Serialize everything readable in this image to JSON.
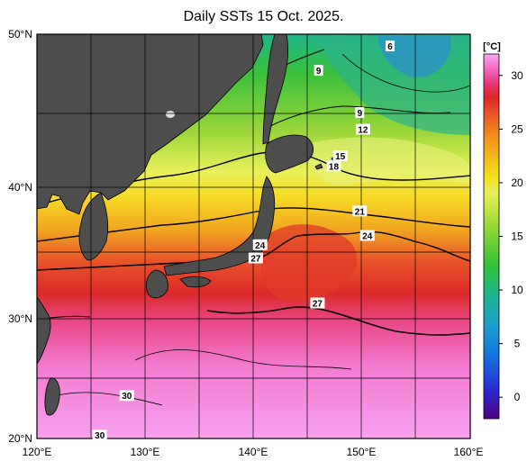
{
  "title": "Daily SSTs 15 Oct. 2025.",
  "map": {
    "lat_range": [
      20,
      50
    ],
    "lon_range": [
      120,
      160
    ],
    "lat_ticks": [
      "20°N",
      "30°N",
      "40°N",
      "50°N"
    ],
    "lon_ticks": [
      "120°E",
      "130°E",
      "140°E",
      "150°E",
      "160°E"
    ],
    "land_color": "#4d4d4d",
    "grid": true
  },
  "colorbar": {
    "unit_label": "[°C]",
    "ticks": [
      "0",
      "5",
      "10",
      "15",
      "20",
      "25",
      "30"
    ],
    "range": [
      -2,
      32
    ],
    "colors": [
      "#4d007f",
      "#2a2ad6",
      "#1478e0",
      "#1ca0c8",
      "#1fb48a",
      "#36c13a",
      "#7ad238",
      "#b4e33c",
      "#e7ef5a",
      "#f2e21c",
      "#f2b81a",
      "#f08a1e",
      "#e8502a",
      "#dc2828",
      "#e8357a",
      "#f36ac0",
      "#f7a8f0"
    ]
  },
  "contour_labels": [
    {
      "text": "6",
      "lat": 49.3,
      "lon": 152.6
    },
    {
      "text": "9",
      "lat": 47.8,
      "lon": 146.0
    },
    {
      "text": "9",
      "lat": 45.1,
      "lon": 149.8
    },
    {
      "text": "12",
      "lat": 44.0,
      "lon": 150.1
    },
    {
      "text": "15",
      "lat": 42.2,
      "lon": 148.0
    },
    {
      "text": "18",
      "lat": 41.5,
      "lon": 147.4
    },
    {
      "text": "21",
      "lat": 38.3,
      "lon": 149.8
    },
    {
      "text": "24",
      "lat": 36.5,
      "lon": 150.5
    },
    {
      "text": "24",
      "lat": 35.8,
      "lon": 140.6
    },
    {
      "text": "27",
      "lat": 34.8,
      "lon": 140.2
    },
    {
      "text": "27",
      "lat": 31.3,
      "lon": 145.9
    },
    {
      "text": "30",
      "lat": 23.7,
      "lon": 128.3
    },
    {
      "text": "30",
      "lat": 20.3,
      "lon": 125.8
    }
  ]
}
